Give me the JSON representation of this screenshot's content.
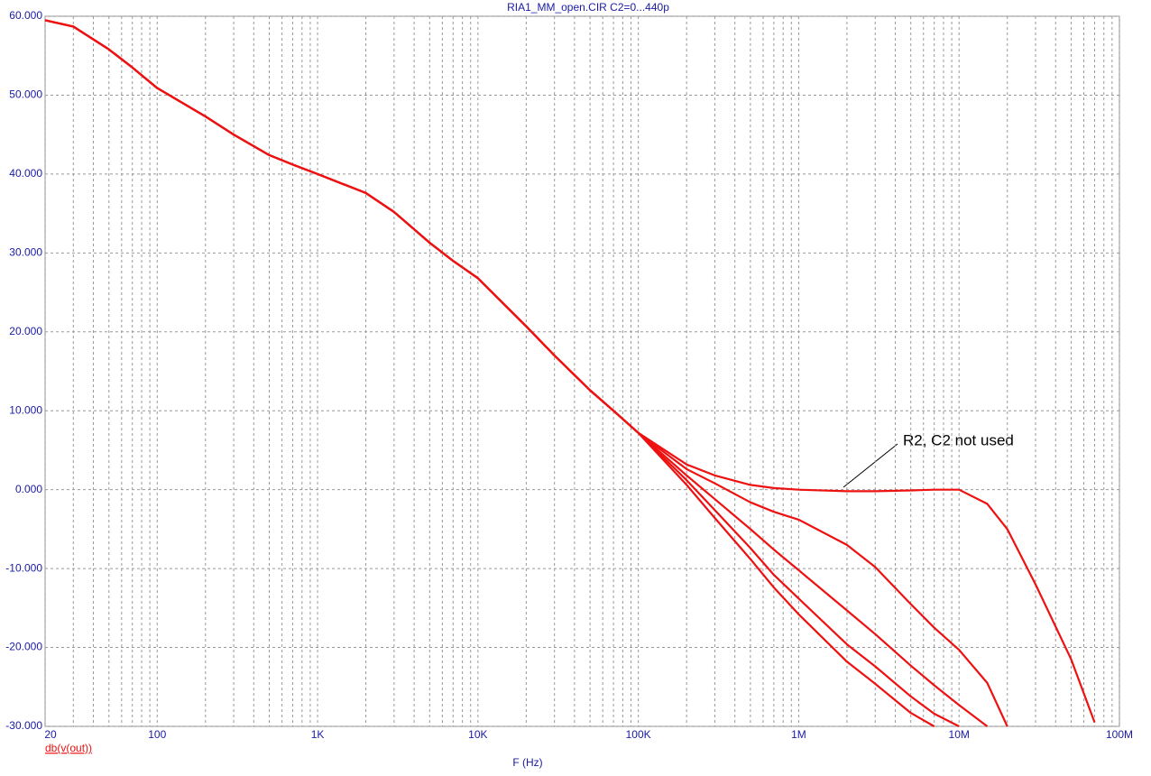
{
  "chart_data": {
    "type": "line",
    "title": "RIA1_MM_open.CIR C2=0...440p",
    "x_label": "F (Hz)",
    "trace_label": "db(v(out))",
    "annotation": "R2, C2 not used",
    "log_x": true,
    "grid": true,
    "color": "#ee1111",
    "x": [
      20,
      30,
      50,
      70,
      100,
      200,
      300,
      500,
      700,
      1000,
      2000,
      3000,
      5000,
      7000,
      10000,
      20000,
      30000,
      50000,
      70000,
      100000,
      200000,
      300000,
      500000,
      700000,
      1000000,
      2000000,
      3000000,
      5000000,
      7000000,
      10000000,
      15000000,
      20000000,
      30000000,
      50000000,
      70000000
    ],
    "series": [
      {
        "color": "#ee1111",
        "values": [
          59.5,
          58.7,
          55.8,
          53.5,
          50.9,
          47.3,
          45,
          42.4,
          41.2,
          40,
          37.6,
          35.2,
          31.3,
          29,
          26.8,
          20.7,
          17,
          12.6,
          10,
          7.2,
          3.2,
          1.8,
          0.6,
          0.2,
          0,
          -0.2,
          -0.2,
          -0.1,
          0,
          0,
          -1.8,
          -5,
          -12,
          -21.5,
          -29.5
        ]
      },
      {
        "color": "#ee1111",
        "values": [
          59.5,
          58.7,
          55.8,
          53.5,
          50.9,
          47.3,
          45,
          42.4,
          41.2,
          40,
          37.6,
          35.2,
          31.3,
          29,
          26.8,
          20.7,
          17,
          12.6,
          10,
          7.2,
          2.6,
          0.8,
          -1.6,
          -2.8,
          -3.8,
          -7,
          -9.8,
          -14.5,
          -17.5,
          -20.3,
          -24.5,
          -30,
          null,
          null,
          null
        ]
      },
      {
        "color": "#ee1111",
        "values": [
          59.5,
          58.7,
          55.8,
          53.5,
          50.9,
          47.3,
          45,
          42.4,
          41.2,
          40,
          37.6,
          35.2,
          31.3,
          29,
          26.8,
          20.7,
          17,
          12.6,
          10,
          7.2,
          1.8,
          -1.2,
          -5,
          -7.6,
          -10.2,
          -15.3,
          -18.3,
          -22.3,
          -24.8,
          -27.3,
          -30,
          null,
          null,
          null,
          null
        ]
      },
      {
        "color": "#ee1111",
        "values": [
          59.5,
          58.7,
          55.8,
          53.5,
          50.9,
          47.3,
          45,
          42.4,
          41.2,
          40,
          37.6,
          35.2,
          31.3,
          29,
          26.8,
          20.7,
          17,
          12.6,
          10,
          7.2,
          1.2,
          -2.6,
          -7.4,
          -10.8,
          -13.8,
          -19.6,
          -22.4,
          -26.2,
          -28.4,
          -30,
          null,
          null,
          null,
          null,
          null
        ]
      },
      {
        "color": "#ee1111",
        "values": [
          59.5,
          58.7,
          55.8,
          53.5,
          50.9,
          47.3,
          45,
          42.4,
          41.2,
          40,
          37.6,
          35.2,
          31.3,
          29,
          26.8,
          20.7,
          17,
          12.6,
          10,
          7.2,
          0.6,
          -3.6,
          -8.8,
          -12.4,
          -15.8,
          -21.8,
          -24.6,
          -28.3,
          -30,
          null,
          null,
          null,
          null,
          null,
          null
        ]
      }
    ],
    "xlim": [
      20,
      100000000
    ],
    "xticks": [
      20,
      100,
      {
        "value": 1000,
        "label": "1K"
      },
      {
        "value": 10000,
        "label": "10K"
      },
      {
        "value": 100000,
        "label": "100K"
      },
      {
        "value": 1000000,
        "label": "1M"
      },
      {
        "value": 10000000,
        "label": "10M"
      },
      {
        "value": 100000000,
        "label": "100M"
      }
    ],
    "ylim": [
      -30,
      60
    ],
    "yticks": [
      {
        "value": 60,
        "label": "60.000"
      },
      {
        "value": 50,
        "label": "50.000"
      },
      {
        "value": 40,
        "label": "40.000"
      },
      {
        "value": 30,
        "label": "30.000"
      },
      {
        "value": 20,
        "label": "20.000"
      },
      {
        "value": 10,
        "label": "10.000"
      },
      {
        "value": 0,
        "label": "0.000"
      },
      {
        "value": -10,
        "label": "-10.000"
      },
      {
        "value": -20,
        "label": "-20.000"
      },
      {
        "value": -30,
        "label": "-30.000"
      }
    ]
  }
}
